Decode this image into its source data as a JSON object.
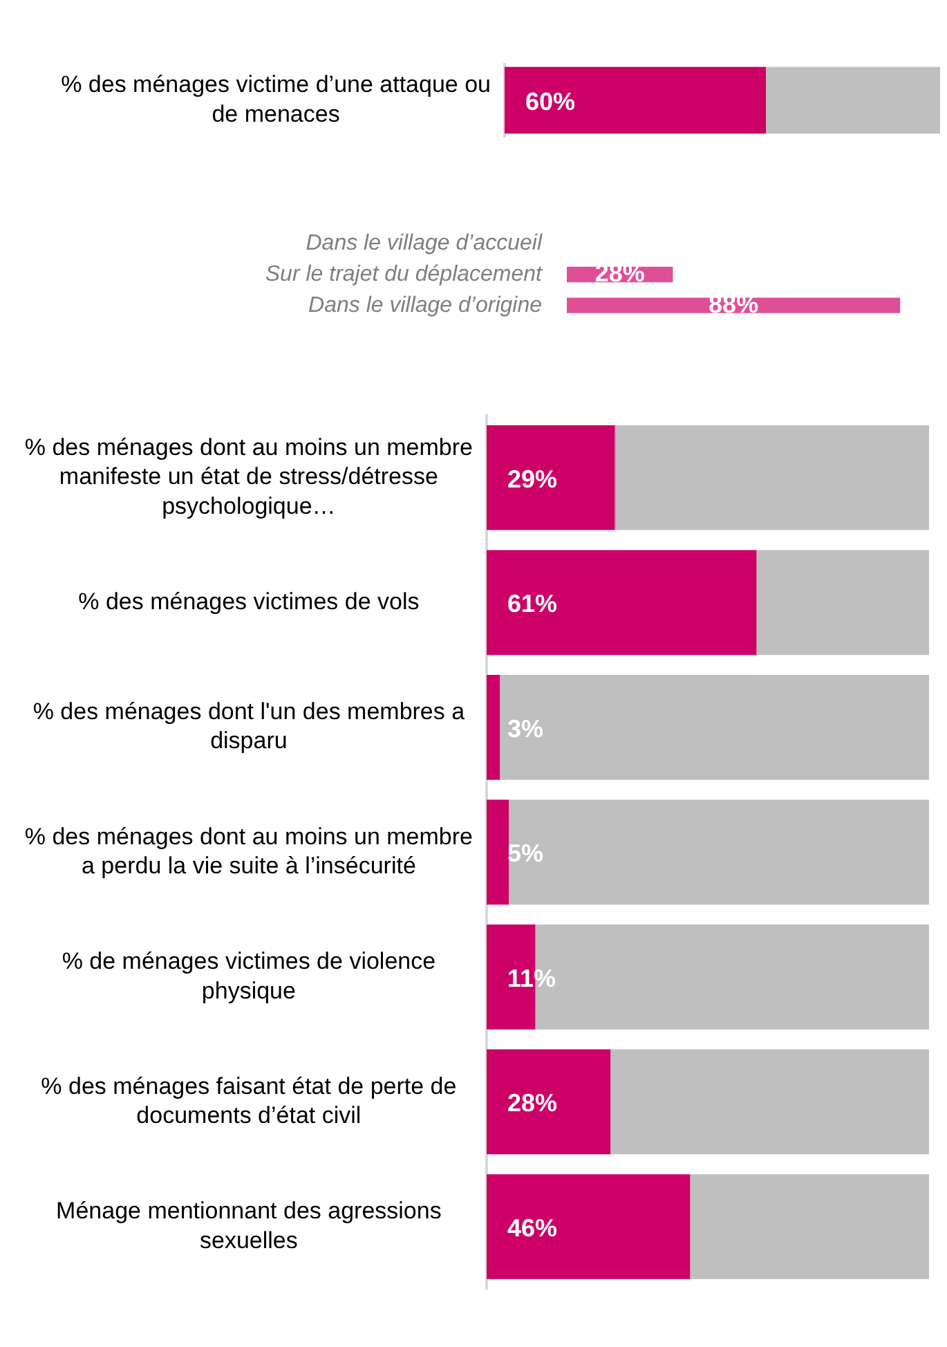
{
  "chart_data": [
    {
      "type": "bar",
      "orientation": "horizontal",
      "stacked": true,
      "tick_labels": "y",
      "grid": false,
      "xlim": [
        0,
        100
      ],
      "categories": [
        "% des ménages victime d’une attaque ou de menaces"
      ],
      "series": [
        {
          "color": "#cc0066",
          "values": [
            60
          ],
          "value_labels": [
            "60%"
          ]
        },
        {
          "color": "#bfbfbf",
          "values": [
            40
          ]
        }
      ]
    },
    {
      "type": "bar",
      "orientation": "horizontal",
      "tick_labels": "y",
      "grid": false,
      "categories": [
        "Dans le village d’accueil",
        "Sur le trajet du déplacement",
        "Dans le village d’origine"
      ],
      "series": [
        {
          "color": "#df4f98",
          "values": [
            null,
            28,
            88
          ],
          "value_labels": [
            null,
            "28%",
            "88%"
          ]
        }
      ]
    },
    {
      "type": "bar",
      "orientation": "horizontal",
      "stacked": true,
      "tick_labels": "y",
      "grid": false,
      "xlim": [
        0,
        100
      ],
      "categories": [
        "% des ménages dont au moins un membre manifeste un état de stress/détresse psychologique…",
        "% des ménages victimes de vols",
        "% des ménages dont l'un des membres a disparu",
        "% des ménages dont au moins un membre a perdu la vie suite à l’insécurité",
        "% de ménages victimes de violence physique",
        "% des ménages faisant état de perte de documents d’état civil",
        "Ménage mentionnant des agressions sexuelles"
      ],
      "series": [
        {
          "color": "#cc0066",
          "values": [
            29,
            61,
            3,
            5,
            11,
            28,
            46
          ],
          "value_labels": [
            "29%",
            "61%",
            "3%",
            "5%",
            "11%",
            "28%",
            "46%"
          ]
        },
        {
          "color": "#bfbfbf",
          "values": [
            71,
            39,
            97,
            95,
            89,
            72,
            54
          ]
        }
      ]
    }
  ]
}
